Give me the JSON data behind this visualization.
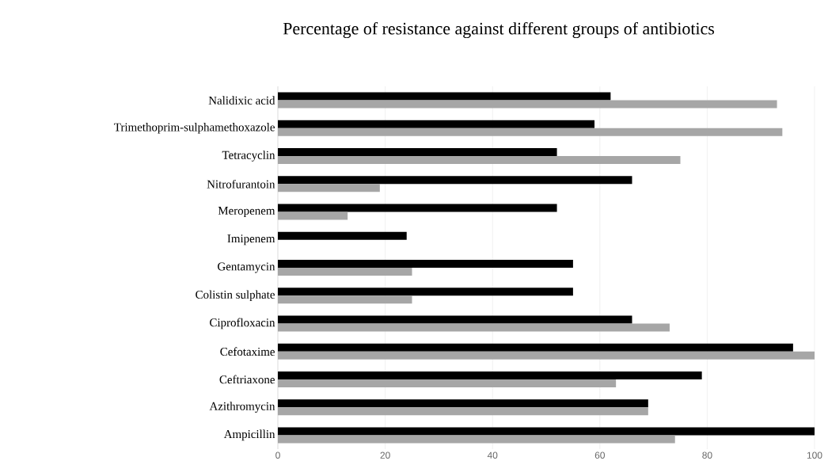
{
  "chart_data": {
    "type": "bar",
    "orientation": "horizontal",
    "title": "Percentage of resistance against different groups of antibiotics",
    "categories": [
      "Nalidixic acid",
      "Trimethoprim-sulphamethoxazole",
      "Tetracyclin",
      "Nitrofurantoin",
      "Meropenem",
      "Imipenem",
      "Gentamycin",
      "Colistin sulphate",
      "Ciprofloxacin",
      "Cefotaxime",
      "Ceftriaxone",
      "Azithromycin",
      "Ampicillin"
    ],
    "series": [
      {
        "color": "#000000",
        "values": [
          62,
          59,
          52,
          66,
          52,
          24,
          55,
          55,
          66,
          96,
          79,
          69,
          100
        ]
      },
      {
        "color": "#a6a6a6",
        "values": [
          93,
          94,
          75,
          19,
          13,
          0,
          25,
          25,
          73,
          100,
          63,
          69,
          74
        ]
      }
    ],
    "xlim": [
      0,
      100
    ],
    "xticks": [
      0,
      20,
      40,
      60,
      80,
      100
    ],
    "grid": "x"
  }
}
